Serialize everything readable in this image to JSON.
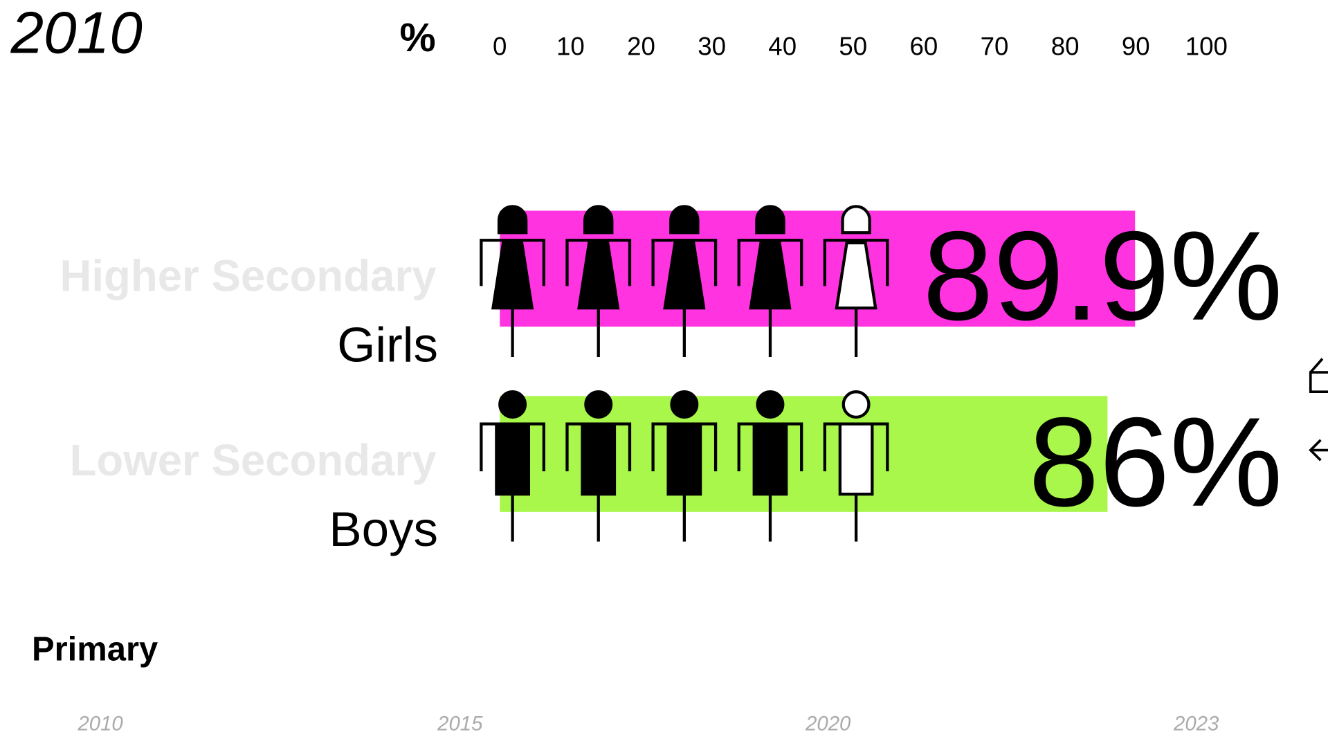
{
  "chart_data": {
    "type": "bar",
    "title": "2010",
    "unit_label": "%",
    "categories": [
      "Girls",
      "Boys"
    ],
    "values": [
      89.9,
      86
    ],
    "value_labels": [
      "89.9%",
      "86%"
    ],
    "colors": [
      "#ff33e0",
      "#a8f74a"
    ],
    "xlim": [
      0,
      100
    ],
    "xticks": [
      0,
      10,
      20,
      30,
      40,
      50,
      60,
      70,
      80,
      90,
      100
    ],
    "levels": [
      "Higher Secondary",
      "Lower Secondary",
      "Primary"
    ],
    "timeline": [
      "2010",
      "2015",
      "2020",
      "2023"
    ]
  }
}
